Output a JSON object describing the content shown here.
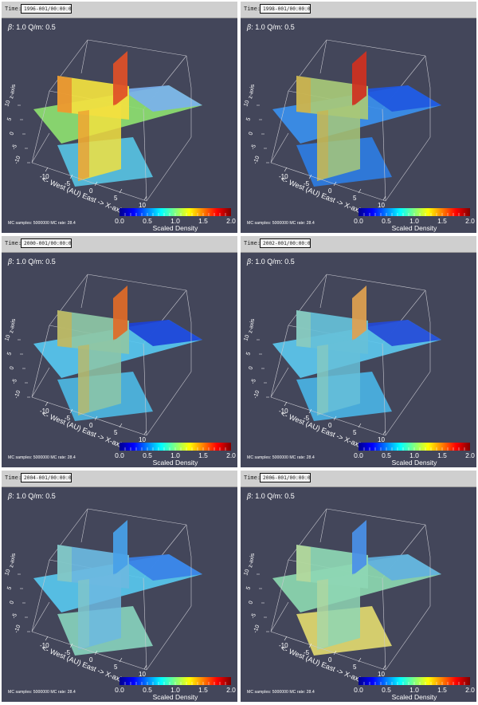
{
  "time_label": "Time:",
  "panels": [
    {
      "time": "1996-001/00:00:00",
      "beta_label": "β",
      "params": ": 1.0  Q/m: 0.5"
    },
    {
      "time": "1998-001/00:00:00",
      "beta_label": "β",
      "params": ": 1.0  Q/m: 0.5"
    },
    {
      "time": "2000-001/00:00:00",
      "beta_label": "β",
      "params": ": 1.0  Q/m: 0.5"
    },
    {
      "time": "2002-001/00:00:00",
      "beta_label": "β",
      "params": ": 1.0  Q/m: 0.5"
    },
    {
      "time": "2004-001/00:00:00",
      "beta_label": "β",
      "params": ": 1.0  Q/m: 0.5"
    },
    {
      "time": "2006-001/00:00:00",
      "beta_label": "β",
      "params": ": 1.0  Q/m: 0.5"
    }
  ],
  "mc_text": "MC samples: 5000000   MC rate: 28.4",
  "colorbar": {
    "title": "Scaled Density",
    "ticks": [
      "0.0",
      "0.5",
      "1.0",
      "1.5",
      "2.0"
    ],
    "colors": [
      "#00008f",
      "#0000ff",
      "#0080ff",
      "#00ffff",
      "#80ff80",
      "#ffff00",
      "#ff8000",
      "#ff0000",
      "#800000"
    ]
  },
  "axes": {
    "x_label": "<- West (AU) East -> X-axis",
    "x_ticks": [
      "-10",
      "-5",
      "0",
      "5",
      "10"
    ],
    "y_ticks": [
      "10",
      "5",
      "0",
      "-5",
      "-10"
    ],
    "z_label": "z-axis"
  },
  "scene_colors": {
    "background": "#43465a",
    "box_line": "#c8c8d0",
    "label_text": "#ffffff"
  }
}
